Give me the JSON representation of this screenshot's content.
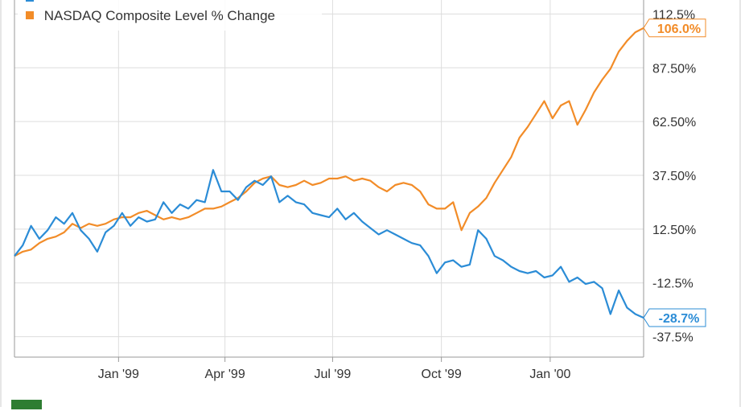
{
  "chart_data": {
    "type": "line",
    "ylabel_format": "percent",
    "ylim": [
      -47,
      119
    ],
    "x_range": [
      "1998-10-05",
      "2000-03-20"
    ],
    "x_ticks": [
      {
        "label": "Jan '99",
        "date": "1999-01-01"
      },
      {
        "label": "Apr '99",
        "date": "1999-04-01"
      },
      {
        "label": "Jul '99",
        "date": "1999-07-01"
      },
      {
        "label": "Oct '99",
        "date": "1999-10-01"
      },
      {
        "label": "Jan '00",
        "date": "2000-01-01"
      }
    ],
    "y_ticks": [
      {
        "label": "112.5%",
        "value": 112.5
      },
      {
        "label": "87.50%",
        "value": 87.5
      },
      {
        "label": "62.50%",
        "value": 62.5
      },
      {
        "label": "37.50%",
        "value": 37.5
      },
      {
        "label": "12.50%",
        "value": 12.5
      },
      {
        "label": "-12.5%",
        "value": -12.5
      },
      {
        "label": "-37.5%",
        "value": -37.5
      }
    ],
    "grid": true,
    "legend_position": "top-left",
    "series": [
      {
        "name": "NASDAQ Composite Level % Change",
        "color": "#f28c28",
        "end_label": "106.0%",
        "points": [
          [
            "1998-10-05",
            0
          ],
          [
            "1998-10-12",
            2
          ],
          [
            "1998-10-19",
            3
          ],
          [
            "1998-10-26",
            6
          ],
          [
            "1998-11-02",
            8
          ],
          [
            "1998-11-09",
            9
          ],
          [
            "1998-11-16",
            11
          ],
          [
            "1998-11-23",
            15
          ],
          [
            "1998-11-30",
            13
          ],
          [
            "1998-12-07",
            15
          ],
          [
            "1998-12-14",
            14
          ],
          [
            "1998-12-21",
            15
          ],
          [
            "1998-12-28",
            17
          ],
          [
            "1999-01-04",
            18
          ],
          [
            "1999-01-11",
            18
          ],
          [
            "1999-01-18",
            20
          ],
          [
            "1999-01-25",
            21
          ],
          [
            "1999-02-01",
            19
          ],
          [
            "1999-02-08",
            17
          ],
          [
            "1999-02-15",
            18
          ],
          [
            "1999-02-22",
            17
          ],
          [
            "1999-03-01",
            18
          ],
          [
            "1999-03-08",
            20
          ],
          [
            "1999-03-15",
            22
          ],
          [
            "1999-03-22",
            22
          ],
          [
            "1999-03-29",
            23
          ],
          [
            "1999-04-05",
            25
          ],
          [
            "1999-04-12",
            27
          ],
          [
            "1999-04-19",
            30
          ],
          [
            "1999-04-26",
            34
          ],
          [
            "1999-05-03",
            36
          ],
          [
            "1999-05-10",
            37
          ],
          [
            "1999-05-17",
            33
          ],
          [
            "1999-05-24",
            32
          ],
          [
            "1999-05-31",
            33
          ],
          [
            "1999-06-07",
            35
          ],
          [
            "1999-06-14",
            33
          ],
          [
            "1999-06-21",
            34
          ],
          [
            "1999-06-28",
            36
          ],
          [
            "1999-07-05",
            36
          ],
          [
            "1999-07-12",
            37
          ],
          [
            "1999-07-19",
            35
          ],
          [
            "1999-07-26",
            36
          ],
          [
            "1999-08-02",
            35
          ],
          [
            "1999-08-09",
            32
          ],
          [
            "1999-08-16",
            30
          ],
          [
            "1999-08-23",
            33
          ],
          [
            "1999-08-30",
            34
          ],
          [
            "1999-09-06",
            33
          ],
          [
            "1999-09-13",
            30
          ],
          [
            "1999-09-20",
            24
          ],
          [
            "1999-09-27",
            22
          ],
          [
            "1999-10-04",
            22
          ],
          [
            "1999-10-11",
            25
          ],
          [
            "1999-10-18",
            12
          ],
          [
            "1999-10-25",
            20
          ],
          [
            "1999-11-01",
            23
          ],
          [
            "1999-11-08",
            27
          ],
          [
            "1999-11-15",
            34
          ],
          [
            "1999-11-22",
            40
          ],
          [
            "1999-11-29",
            46
          ],
          [
            "1999-12-06",
            55
          ],
          [
            "1999-12-13",
            60
          ],
          [
            "1999-12-20",
            66
          ],
          [
            "1999-12-27",
            72
          ],
          [
            "2000-01-03",
            64
          ],
          [
            "2000-01-10",
            70
          ],
          [
            "2000-01-17",
            72
          ],
          [
            "2000-01-24",
            61
          ],
          [
            "2000-01-31",
            68
          ],
          [
            "2000-02-07",
            76
          ],
          [
            "2000-02-14",
            82
          ],
          [
            "2000-02-21",
            87
          ],
          [
            "2000-02-28",
            95
          ],
          [
            "2000-03-06",
            100
          ],
          [
            "2000-03-13",
            104
          ],
          [
            "2000-03-20",
            106
          ]
        ]
      },
      {
        "name": "",
        "color": "#2b8cd6",
        "end_label": "-28.7%",
        "points": [
          [
            "1998-10-05",
            0
          ],
          [
            "1998-10-12",
            5
          ],
          [
            "1998-10-19",
            14
          ],
          [
            "1998-10-26",
            8
          ],
          [
            "1998-11-02",
            12
          ],
          [
            "1998-11-09",
            18
          ],
          [
            "1998-11-16",
            15
          ],
          [
            "1998-11-23",
            20
          ],
          [
            "1998-11-30",
            12
          ],
          [
            "1998-12-07",
            8
          ],
          [
            "1998-12-14",
            2
          ],
          [
            "1998-12-21",
            11
          ],
          [
            "1998-12-28",
            14
          ],
          [
            "1999-01-04",
            20
          ],
          [
            "1999-01-11",
            14
          ],
          [
            "1999-01-18",
            18
          ],
          [
            "1999-01-25",
            16
          ],
          [
            "1999-02-01",
            17
          ],
          [
            "1999-02-08",
            25
          ],
          [
            "1999-02-15",
            20
          ],
          [
            "1999-02-22",
            24
          ],
          [
            "1999-03-01",
            22
          ],
          [
            "1999-03-08",
            26
          ],
          [
            "1999-03-15",
            25
          ],
          [
            "1999-03-22",
            40
          ],
          [
            "1999-03-29",
            30
          ],
          [
            "1999-04-05",
            30
          ],
          [
            "1999-04-12",
            26
          ],
          [
            "1999-04-19",
            32
          ],
          [
            "1999-04-26",
            35
          ],
          [
            "1999-05-03",
            33
          ],
          [
            "1999-05-10",
            37
          ],
          [
            "1999-05-17",
            25
          ],
          [
            "1999-05-24",
            28
          ],
          [
            "1999-05-31",
            25
          ],
          [
            "1999-06-07",
            24
          ],
          [
            "1999-06-14",
            20
          ],
          [
            "1999-06-21",
            19
          ],
          [
            "1999-06-28",
            18
          ],
          [
            "1999-07-05",
            22
          ],
          [
            "1999-07-12",
            17
          ],
          [
            "1999-07-19",
            20
          ],
          [
            "1999-07-26",
            16
          ],
          [
            "1999-08-02",
            13
          ],
          [
            "1999-08-09",
            10
          ],
          [
            "1999-08-16",
            12
          ],
          [
            "1999-08-23",
            10
          ],
          [
            "1999-08-30",
            8
          ],
          [
            "1999-09-06",
            6
          ],
          [
            "1999-09-13",
            5
          ],
          [
            "1999-09-20",
            0
          ],
          [
            "1999-09-27",
            -8
          ],
          [
            "1999-10-04",
            -3
          ],
          [
            "1999-10-11",
            -2
          ],
          [
            "1999-10-18",
            -5
          ],
          [
            "1999-10-25",
            -4
          ],
          [
            "1999-11-01",
            12
          ],
          [
            "1999-11-08",
            8
          ],
          [
            "1999-11-15",
            0
          ],
          [
            "1999-11-22",
            -2
          ],
          [
            "1999-11-29",
            -5
          ],
          [
            "1999-12-06",
            -7
          ],
          [
            "1999-12-13",
            -8
          ],
          [
            "1999-12-20",
            -7
          ],
          [
            "1999-12-27",
            -10
          ],
          [
            "2000-01-03",
            -9
          ],
          [
            "2000-01-10",
            -5
          ],
          [
            "2000-01-17",
            -12
          ],
          [
            "2000-01-24",
            -10
          ],
          [
            "2000-01-31",
            -13
          ],
          [
            "2000-02-07",
            -12
          ],
          [
            "2000-02-14",
            -15
          ],
          [
            "2000-02-21",
            -27
          ],
          [
            "2000-02-28",
            -16
          ],
          [
            "2000-03-06",
            -24
          ],
          [
            "2000-03-13",
            -27
          ],
          [
            "2000-03-20",
            -28.7
          ]
        ]
      }
    ]
  }
}
